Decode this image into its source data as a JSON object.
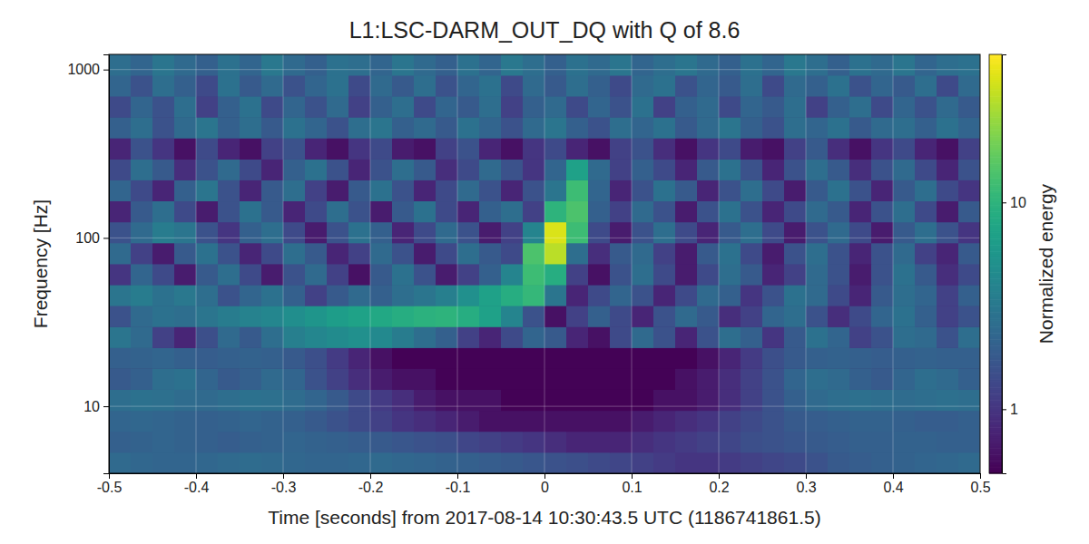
{
  "chart_data": {
    "type": "heatmap",
    "title": "L1:LSC-DARM_OUT_DQ with Q of 8.6",
    "x_label": "Time [seconds] from 2017-08-14 10:30:43.5 UTC (1186741861.5)",
    "y_label": "Frequency [Hz]",
    "xlim": [
      -0.5,
      0.5
    ],
    "xticks": [
      -0.5,
      -0.4,
      -0.3,
      -0.2,
      -0.1,
      0,
      0.1,
      0.2,
      0.3,
      0.4,
      0.5
    ],
    "ylim": [
      4,
      1230
    ],
    "yticks": [
      10,
      100,
      1000
    ],
    "log": "y",
    "grid": true,
    "x_edges": [
      -0.5,
      -0.475,
      -0.45,
      -0.425,
      -0.4,
      -0.375,
      -0.35,
      -0.325,
      -0.3,
      -0.275,
      -0.25,
      -0.225,
      -0.2,
      -0.175,
      -0.15,
      -0.125,
      -0.1,
      -0.075,
      -0.05,
      -0.025,
      0,
      0.025,
      0.05,
      0.075,
      0.1,
      0.125,
      0.15,
      0.175,
      0.2,
      0.225,
      0.25,
      0.275,
      0.3,
      0.325,
      0.35,
      0.375,
      0.4,
      0.425,
      0.45,
      0.475,
      0.5
    ],
    "y_edges": [
      4.0,
      5.33,
      7.1,
      9.45,
      12.6,
      16.8,
      22.3,
      29.7,
      39.6,
      52.7,
      70.2,
      93.5,
      124.5,
      166,
      221,
      294,
      392,
      522,
      695,
      925,
      1230
    ],
    "z": [
      [
        2.4,
        2.3,
        2.2,
        2.2,
        2.3,
        2.4,
        2.5,
        2.4,
        2.3,
        2.2,
        2.2,
        2.3,
        2.4,
        2.3,
        2.2,
        2.1,
        2.0,
        1.9,
        1.8,
        1.7,
        1.6,
        1.5,
        1.4,
        1.3,
        1.2,
        1.1,
        1.0,
        1.0,
        1.1,
        1.2,
        1.3,
        1.4,
        1.6,
        1.8,
        1.9,
        2.0,
        2.1,
        2.2,
        2.3,
        2.4
      ],
      [
        2.0,
        2.1,
        2.2,
        2.1,
        2.0,
        1.9,
        2.0,
        2.1,
        2.2,
        2.1,
        2.0,
        1.9,
        1.8,
        1.7,
        1.6,
        1.5,
        1.3,
        1.2,
        1.1,
        1.0,
        0.9,
        0.8,
        0.8,
        0.8,
        0.9,
        1.0,
        1.1,
        1.2,
        1.3,
        1.5,
        1.6,
        1.7,
        1.8,
        1.9,
        2.0,
        2.0,
        2.1,
        2.1,
        2.0,
        2.0
      ],
      [
        2.2,
        2.3,
        2.2,
        2.1,
        2.0,
        2.1,
        2.2,
        2.1,
        2.0,
        1.8,
        1.6,
        1.4,
        1.2,
        1.0,
        0.9,
        0.8,
        0.7,
        0.6,
        0.6,
        0.6,
        0.6,
        0.6,
        0.6,
        0.6,
        0.7,
        0.8,
        0.9,
        1.0,
        1.2,
        1.4,
        1.6,
        1.8,
        1.9,
        2.0,
        2.1,
        2.1,
        2.0,
        1.9,
        1.9,
        2.0
      ],
      [
        2.6,
        2.8,
        2.7,
        2.5,
        2.4,
        2.6,
        2.8,
        2.7,
        2.5,
        2.2,
        1.8,
        1.4,
        1.1,
        0.9,
        0.7,
        0.6,
        0.6,
        0.6,
        0.5,
        0.5,
        0.5,
        0.5,
        0.5,
        0.5,
        0.5,
        0.6,
        0.6,
        0.7,
        0.9,
        1.2,
        1.6,
        2.0,
        2.4,
        2.6,
        2.7,
        2.6,
        2.5,
        2.6,
        2.7,
        2.6
      ],
      [
        1.8,
        2.0,
        2.6,
        2.8,
        2.2,
        1.8,
        2.0,
        2.4,
        2.2,
        1.6,
        1.2,
        0.9,
        0.7,
        0.6,
        0.6,
        0.5,
        0.5,
        0.5,
        0.5,
        0.5,
        0.5,
        0.5,
        0.5,
        0.5,
        0.5,
        0.5,
        0.6,
        0.7,
        0.9,
        1.2,
        1.6,
        2.2,
        2.6,
        2.4,
        2.0,
        1.8,
        2.2,
        2.6,
        2.4,
        2.0
      ],
      [
        2.0,
        2.1,
        2.2,
        2.0,
        1.9,
        2.0,
        2.1,
        2.0,
        1.8,
        1.5,
        1.1,
        0.8,
        0.6,
        0.5,
        0.5,
        0.5,
        0.5,
        0.5,
        0.5,
        0.5,
        0.5,
        0.5,
        0.5,
        0.5,
        0.5,
        0.5,
        0.5,
        0.6,
        0.8,
        1.1,
        1.5,
        1.8,
        2.0,
        2.1,
        2.0,
        1.9,
        2.0,
        2.1,
        2.0,
        2.0
      ],
      [
        3.0,
        2.4,
        1.2,
        0.8,
        1.5,
        2.4,
        1.8,
        2.6,
        3.6,
        4.2,
        4.6,
        5.0,
        4.4,
        3.4,
        2.6,
        2.0,
        1.2,
        0.8,
        1.4,
        2.2,
        1.8,
        0.8,
        0.6,
        1.4,
        2.4,
        1.6,
        0.8,
        1.6,
        2.6,
        2.0,
        1.0,
        1.8,
        2.8,
        2.2,
        1.2,
        1.6,
        2.6,
        2.4,
        1.6,
        2.6
      ],
      [
        1.6,
        2.4,
        2.8,
        2.6,
        3.0,
        3.4,
        3.8,
        4.2,
        4.8,
        5.6,
        6.4,
        7.2,
        8.0,
        9.0,
        9.6,
        10.0,
        9.0,
        7.0,
        4.0,
        1.6,
        0.6,
        1.2,
        2.0,
        1.4,
        0.8,
        1.6,
        2.4,
        1.8,
        0.9,
        1.2,
        2.2,
        2.6,
        1.6,
        0.9,
        1.4,
        2.2,
        2.8,
        2.0,
        1.2,
        1.6
      ],
      [
        3.0,
        3.4,
        2.8,
        3.2,
        2.6,
        1.6,
        2.2,
        2.8,
        2.0,
        1.2,
        1.8,
        2.4,
        2.0,
        2.6,
        3.0,
        3.6,
        5.0,
        7.0,
        9.0,
        11.0,
        3.0,
        0.8,
        1.4,
        2.2,
        1.6,
        0.8,
        1.4,
        2.4,
        2.0,
        1.0,
        1.6,
        2.8,
        2.4,
        1.4,
        0.8,
        1.8,
        2.6,
        2.2,
        1.2,
        2.0
      ],
      [
        1.0,
        2.2,
        1.4,
        0.7,
        1.8,
        2.6,
        1.4,
        0.7,
        1.6,
        2.4,
        1.2,
        0.6,
        1.8,
        2.8,
        1.6,
        0.7,
        1.2,
        2.0,
        4.0,
        12.0,
        9.0,
        1.2,
        0.6,
        1.6,
        2.6,
        1.4,
        0.7,
        1.4,
        2.6,
        1.8,
        0.8,
        1.2,
        2.4,
        1.6,
        0.7,
        1.6,
        2.8,
        1.8,
        0.9,
        1.4
      ],
      [
        2.4,
        1.2,
        0.7,
        1.8,
        2.8,
        1.6,
        0.8,
        1.4,
        2.6,
        1.8,
        0.8,
        1.2,
        2.4,
        1.6,
        0.7,
        1.4,
        2.6,
        1.8,
        1.4,
        14.0,
        32.0,
        2.6,
        0.9,
        1.8,
        2.4,
        1.2,
        0.7,
        1.8,
        2.8,
        1.4,
        0.7,
        1.6,
        2.6,
        1.6,
        0.8,
        1.6,
        2.4,
        1.2,
        0.8,
        1.8
      ],
      [
        1.6,
        2.4,
        3.4,
        3.0,
        1.6,
        1.0,
        2.0,
        2.6,
        1.4,
        0.7,
        1.6,
        2.8,
        2.0,
        0.8,
        1.4,
        2.4,
        1.6,
        0.7,
        1.2,
        4.0,
        40.0,
        12.0,
        1.4,
        0.7,
        1.6,
        2.6,
        1.4,
        0.8,
        1.8,
        2.6,
        1.4,
        0.7,
        1.6,
        2.4,
        1.4,
        0.7,
        1.8,
        2.6,
        1.6,
        1.0
      ],
      [
        0.8,
        1.8,
        2.6,
        1.4,
        0.7,
        1.6,
        2.8,
        1.8,
        0.8,
        1.4,
        2.6,
        1.6,
        0.7,
        1.8,
        2.8,
        1.4,
        0.8,
        2.0,
        2.6,
        1.2,
        10.0,
        14.0,
        2.0,
        1.2,
        2.4,
        1.6,
        0.7,
        1.6,
        2.8,
        1.6,
        0.8,
        1.4,
        2.4,
        1.8,
        0.8,
        1.6,
        2.6,
        1.4,
        0.7,
        1.8
      ],
      [
        2.2,
        1.4,
        0.8,
        2.0,
        3.0,
        1.6,
        0.8,
        1.8,
        2.6,
        1.2,
        0.7,
        1.8,
        2.8,
        1.6,
        0.8,
        1.4,
        2.4,
        1.6,
        0.8,
        1.6,
        3.0,
        12.0,
        2.2,
        0.8,
        1.6,
        2.8,
        1.8,
        0.8,
        1.6,
        2.6,
        1.4,
        0.7,
        1.8,
        2.8,
        1.6,
        0.8,
        1.8,
        2.6,
        1.4,
        1.0
      ],
      [
        1.4,
        2.6,
        1.8,
        0.9,
        1.6,
        2.4,
        1.4,
        0.8,
        2.0,
        2.8,
        1.6,
        0.8,
        1.6,
        2.6,
        1.8,
        0.9,
        1.4,
        2.4,
        1.6,
        1.0,
        2.2,
        7.0,
        2.4,
        1.2,
        2.0,
        1.4,
        0.8,
        1.8,
        2.8,
        1.6,
        0.8,
        1.6,
        2.6,
        1.8,
        0.9,
        1.6,
        2.4,
        1.4,
        0.8,
        1.6
      ],
      [
        0.8,
        1.6,
        1.0,
        0.6,
        1.4,
        0.8,
        0.6,
        1.2,
        1.6,
        0.8,
        0.6,
        1.0,
        1.4,
        0.7,
        0.6,
        1.2,
        1.6,
        0.8,
        0.6,
        1.0,
        1.4,
        0.8,
        0.6,
        1.2,
        1.6,
        0.9,
        0.6,
        1.0,
        1.4,
        0.7,
        0.6,
        1.2,
        1.8,
        0.9,
        0.6,
        1.0,
        1.4,
        0.8,
        0.6,
        1.2
      ],
      [
        2.0,
        2.6,
        1.6,
        2.4,
        3.0,
        2.0,
        2.6,
        1.8,
        2.8,
        2.2,
        1.6,
        2.6,
        3.0,
        2.0,
        2.4,
        1.8,
        2.8,
        2.2,
        1.6,
        2.4,
        3.0,
        2.0,
        1.6,
        2.6,
        2.2,
        2.8,
        1.8,
        2.4,
        3.0,
        2.0,
        1.6,
        2.6,
        2.2,
        2.8,
        1.8,
        2.4,
        2.6,
        2.0,
        2.8,
        2.2
      ],
      [
        1.4,
        2.2,
        1.6,
        2.6,
        1.2,
        2.0,
        2.8,
        1.4,
        2.2,
        1.6,
        2.4,
        1.2,
        2.0,
        2.6,
        1.4,
        2.2,
        1.8,
        2.6,
        1.2,
        2.0,
        2.4,
        1.4,
        2.2,
        1.6,
        2.8,
        1.2,
        2.0,
        2.4,
        1.4,
        2.2,
        1.8,
        2.6,
        1.2,
        2.0,
        2.6,
        1.4,
        2.2,
        1.6,
        2.4,
        1.8
      ],
      [
        2.2,
        1.6,
        2.6,
        2.0,
        1.4,
        2.8,
        1.8,
        2.4,
        1.6,
        2.2,
        2.8,
        1.4,
        2.4,
        1.8,
        2.6,
        1.6,
        2.2,
        2.8,
        1.4,
        2.4,
        1.8,
        2.6,
        2.0,
        1.4,
        2.4,
        2.8,
        1.6,
        2.2,
        1.8,
        2.6,
        1.4,
        2.4,
        2.0,
        2.8,
        1.6,
        2.2,
        1.8,
        2.6,
        1.4,
        2.4
      ],
      [
        2.6,
        2.2,
        3.0,
        2.4,
        2.0,
        2.8,
        2.2,
        3.2,
        2.4,
        2.0,
        2.8,
        2.6,
        2.2,
        3.0,
        2.4,
        2.0,
        2.8,
        2.2,
        3.2,
        2.6,
        2.0,
        2.8,
        2.4,
        3.0,
        2.2,
        2.6,
        3.0,
        2.4,
        2.0,
        2.8,
        2.2,
        3.2,
        2.6,
        2.0,
        2.8,
        2.4,
        3.0,
        2.2,
        2.6,
        2.8
      ]
    ],
    "colorbar": {
      "label": "Normalized energy",
      "lim": [
        0.49,
        52
      ],
      "ticks": [
        1,
        10
      ],
      "log": true,
      "color": "viridis"
    }
  }
}
